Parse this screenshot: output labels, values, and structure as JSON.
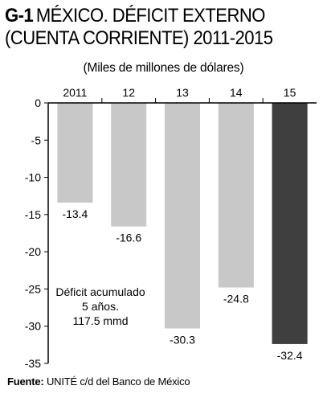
{
  "title": {
    "code": "G-1",
    "text": "MÉXICO. DÉFICIT EXTERNO (CUENTA CORRIENTE) 2011-2015"
  },
  "subtitle": "(Miles de millones de dólares)",
  "annotation": [
    "Déficit acumulado",
    "5 años.",
    "117.5 mmd"
  ],
  "source": {
    "label": "Fuente:",
    "text": "UNITÉ c/d del Banco de México"
  },
  "colors": {
    "bar": "#c8c8c8",
    "highlight": "#3f3f3f",
    "axis": "#000000"
  },
  "chart_data": {
    "type": "bar",
    "categories": [
      "2011",
      "12",
      "13",
      "14",
      "15"
    ],
    "values": [
      -13.4,
      -16.6,
      -30.3,
      -24.8,
      -32.4
    ],
    "value_labels": [
      "-13.4",
      "-16.6",
      "-30.3",
      "-24.8",
      "-32.4"
    ],
    "highlight_index": 4,
    "ylim": [
      -35,
      0
    ],
    "yticks": [
      0,
      -5,
      -10,
      -15,
      -20,
      -25,
      -30,
      -35
    ],
    "xaxis_position": "top",
    "grid": false,
    "legend": "none"
  }
}
